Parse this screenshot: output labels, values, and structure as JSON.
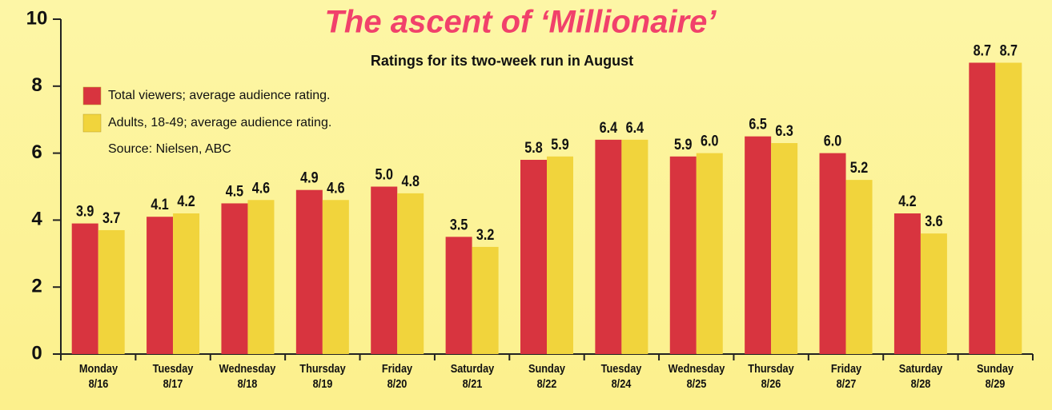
{
  "chart_data": {
    "type": "bar",
    "title": "The ascent of ‘Millionaire’",
    "subtitle": "Ratings for its two-week run in August",
    "source": "Source: Nielsen, ABC",
    "categories": [
      "Monday\n8/16",
      "Tuesday\n8/17",
      "Wednesday\n8/18",
      "Thursday\n8/19",
      "Friday\n8/20",
      "Saturday\n8/21",
      "Sunday\n8/22",
      "Tuesday\n8/24",
      "Wednesday\n8/25",
      "Thursday\n8/26",
      "Friday\n8/27",
      "Saturday\n8/28",
      "Sunday\n8/29"
    ],
    "series": [
      {
        "name": "Total viewers; average audience rating.",
        "color": "#d8343f",
        "values": [
          3.9,
          4.1,
          4.5,
          4.9,
          5.0,
          3.5,
          5.8,
          6.4,
          5.9,
          6.5,
          6.0,
          4.2,
          8.7
        ],
        "value_labels": [
          "3.9",
          "4.1",
          "4.5",
          "4.9",
          "5.0",
          "3.5",
          "5.8",
          "6.4",
          "5.9",
          "6.5",
          "6.0",
          "4.2",
          "8.7"
        ]
      },
      {
        "name": "Adults, 18-49; average audience rating.",
        "color": "#f1d43c",
        "values": [
          3.7,
          4.2,
          4.6,
          4.6,
          4.8,
          3.2,
          5.9,
          6.4,
          6.0,
          6.3,
          5.2,
          3.6,
          8.7
        ],
        "value_labels": [
          "3.7",
          "4.2",
          "4.6",
          "4.6",
          "4.8",
          "3.2",
          "5.9",
          "6.4",
          "6.0",
          "6.3",
          "5.2",
          "3.6",
          "8.7"
        ]
      }
    ],
    "ylim": [
      0,
      10
    ],
    "yticks": [
      0,
      2,
      4,
      6,
      8,
      10
    ],
    "grid": false,
    "legend": "upper left"
  }
}
